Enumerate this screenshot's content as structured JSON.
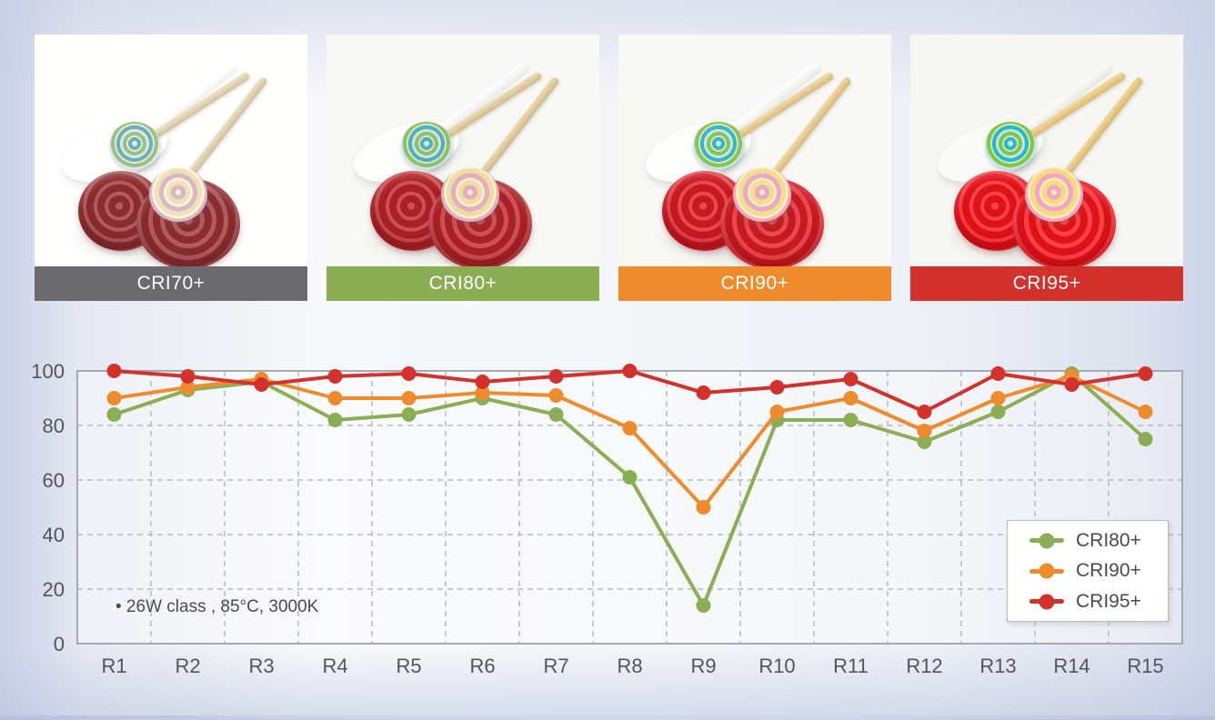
{
  "panels": [
    {
      "label": "CRI70+",
      "color": "#6b6a6e"
    },
    {
      "label": "CRI80+",
      "color": "#8bae54"
    },
    {
      "label": "CRI90+",
      "color": "#ee8c2d"
    },
    {
      "label": "CRI95+",
      "color": "#d2312c"
    }
  ],
  "chart_data": {
    "type": "line",
    "title": "",
    "categories": [
      "R1",
      "R2",
      "R3",
      "R4",
      "R5",
      "R6",
      "R7",
      "R8",
      "R9",
      "R10",
      "R11",
      "R12",
      "R13",
      "R14",
      "R15"
    ],
    "series": [
      {
        "name": "CRI80+",
        "color": "#8bae54",
        "values": [
          84,
          93,
          96,
          82,
          84,
          90,
          84,
          61,
          14,
          82,
          82,
          74,
          85,
          99,
          75
        ]
      },
      {
        "name": "CRI90+",
        "color": "#ee8c2d",
        "values": [
          90,
          94,
          97,
          90,
          90,
          92,
          91,
          79,
          50,
          85,
          90,
          78,
          90,
          98,
          85
        ]
      },
      {
        "name": "CRI95+",
        "color": "#d2312c",
        "values": [
          100,
          98,
          95,
          98,
          99,
          96,
          98,
          100,
          92,
          94,
          97,
          85,
          99,
          95,
          99
        ]
      }
    ],
    "xlabel": "",
    "ylabel": "",
    "ylim": [
      0,
      100
    ],
    "yticks": [
      0,
      20,
      40,
      60,
      80,
      100
    ],
    "grid": "dashed",
    "legend_position": "inside-right",
    "note": "• 26W class , 85°C, 3000K"
  }
}
